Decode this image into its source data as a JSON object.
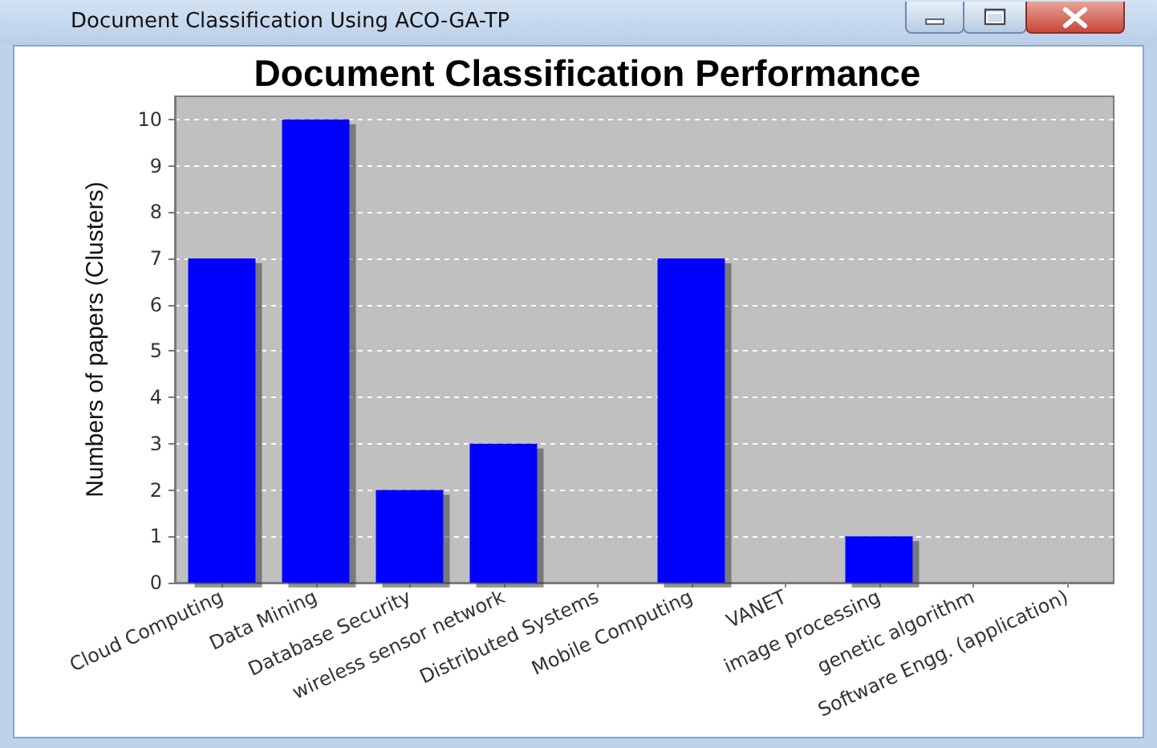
{
  "chart_data": {
    "type": "bar",
    "title": "Document Classification Performance",
    "ylabel": "Numbers of papers (Clusters)",
    "annotations": [
      "Document Classification Using ACO-GA-TP"
    ],
    "categories": [
      "Cloud Computing",
      "Data Mining",
      "Database Security",
      "wireless sensor network",
      "Distributed Systems",
      "Mobile Computing",
      "VANET",
      "image processing",
      "genetic algorithm",
      "Software Engg. (application)"
    ],
    "values": [
      7,
      10,
      2,
      3,
      0,
      7,
      0,
      1,
      0,
      0
    ],
    "color": "#0000ff",
    "ylim": [
      0,
      10.5
    ],
    "yticks": [
      0,
      1,
      2,
      3,
      4,
      5,
      6,
      7,
      8,
      9,
      10
    ],
    "grid": "y"
  }
}
